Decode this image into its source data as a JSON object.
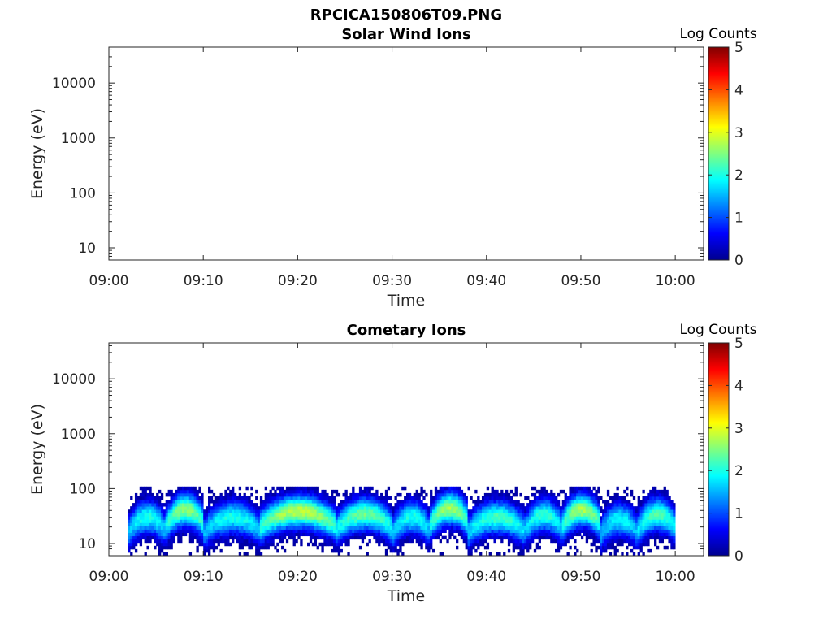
{
  "figure": {
    "title": "RPCICA150806T09.PNG"
  },
  "chart_data": [
    {
      "type": "heatmap",
      "title": "Solar Wind Ions",
      "xlabel": "Time",
      "ylabel": "Energy (eV)",
      "y_scale": "log",
      "ylim": [
        6,
        45000
      ],
      "xlim": [
        "09:00",
        "10:03"
      ],
      "x_tick_labels": [
        "09:00",
        "09:10",
        "09:20",
        "09:30",
        "09:40",
        "09:50",
        "10:00"
      ],
      "y_tick_labels": [
        "10",
        "100",
        "1000",
        "10000"
      ],
      "colorbar": {
        "label": "Log Counts",
        "range": [
          0,
          5
        ],
        "tick_labels": [
          "0",
          "1",
          "2",
          "3",
          "4",
          "5"
        ],
        "colormap": "jet"
      },
      "data_description": "no counts displayed (empty panel)",
      "bands": []
    },
    {
      "type": "heatmap",
      "title": "Cometary Ions",
      "xlabel": "Time",
      "ylabel": "Energy (eV)",
      "y_scale": "log",
      "ylim": [
        6,
        45000
      ],
      "xlim": [
        "09:00",
        "10:03"
      ],
      "x_tick_labels": [
        "09:00",
        "09:10",
        "09:20",
        "09:30",
        "09:40",
        "09:50",
        "10:00"
      ],
      "y_tick_labels": [
        "10",
        "100",
        "1000",
        "10000"
      ],
      "colorbar": {
        "label": "Log Counts",
        "range": [
          0,
          5
        ],
        "tick_labels": [
          "0",
          "1",
          "2",
          "3",
          "4",
          "5"
        ],
        "colormap": "jet"
      },
      "data_start": "09:02",
      "data_end": "10:00",
      "bands": [
        {
          "time_start": "09:02",
          "time_end": "09:06",
          "peak_energy_eV": 22,
          "peak_log_counts": 2.0
        },
        {
          "time_start": "09:06",
          "time_end": "09:10",
          "peak_energy_eV": 30,
          "peak_log_counts": 2.6
        },
        {
          "time_start": "09:10",
          "time_end": "09:16",
          "peak_energy_eV": 22,
          "peak_log_counts": 2.0
        },
        {
          "time_start": "09:16",
          "time_end": "09:24",
          "peak_energy_eV": 28,
          "peak_log_counts": 2.8
        },
        {
          "time_start": "09:24",
          "time_end": "09:30",
          "peak_energy_eV": 25,
          "peak_log_counts": 2.4
        },
        {
          "time_start": "09:30",
          "time_end": "09:34",
          "peak_energy_eV": 22,
          "peak_log_counts": 2.0
        },
        {
          "time_start": "09:34",
          "time_end": "09:38",
          "peak_energy_eV": 32,
          "peak_log_counts": 2.7
        },
        {
          "time_start": "09:38",
          "time_end": "09:44",
          "peak_energy_eV": 22,
          "peak_log_counts": 2.2
        },
        {
          "time_start": "09:44",
          "time_end": "09:48",
          "peak_energy_eV": 24,
          "peak_log_counts": 2.1
        },
        {
          "time_start": "09:48",
          "time_end": "09:52",
          "peak_energy_eV": 30,
          "peak_log_counts": 2.7
        },
        {
          "time_start": "09:52",
          "time_end": "09:56",
          "peak_energy_eV": 20,
          "peak_log_counts": 1.9
        },
        {
          "time_start": "09:56",
          "time_end": "10:00",
          "peak_energy_eV": 25,
          "peak_log_counts": 2.3
        }
      ]
    }
  ]
}
